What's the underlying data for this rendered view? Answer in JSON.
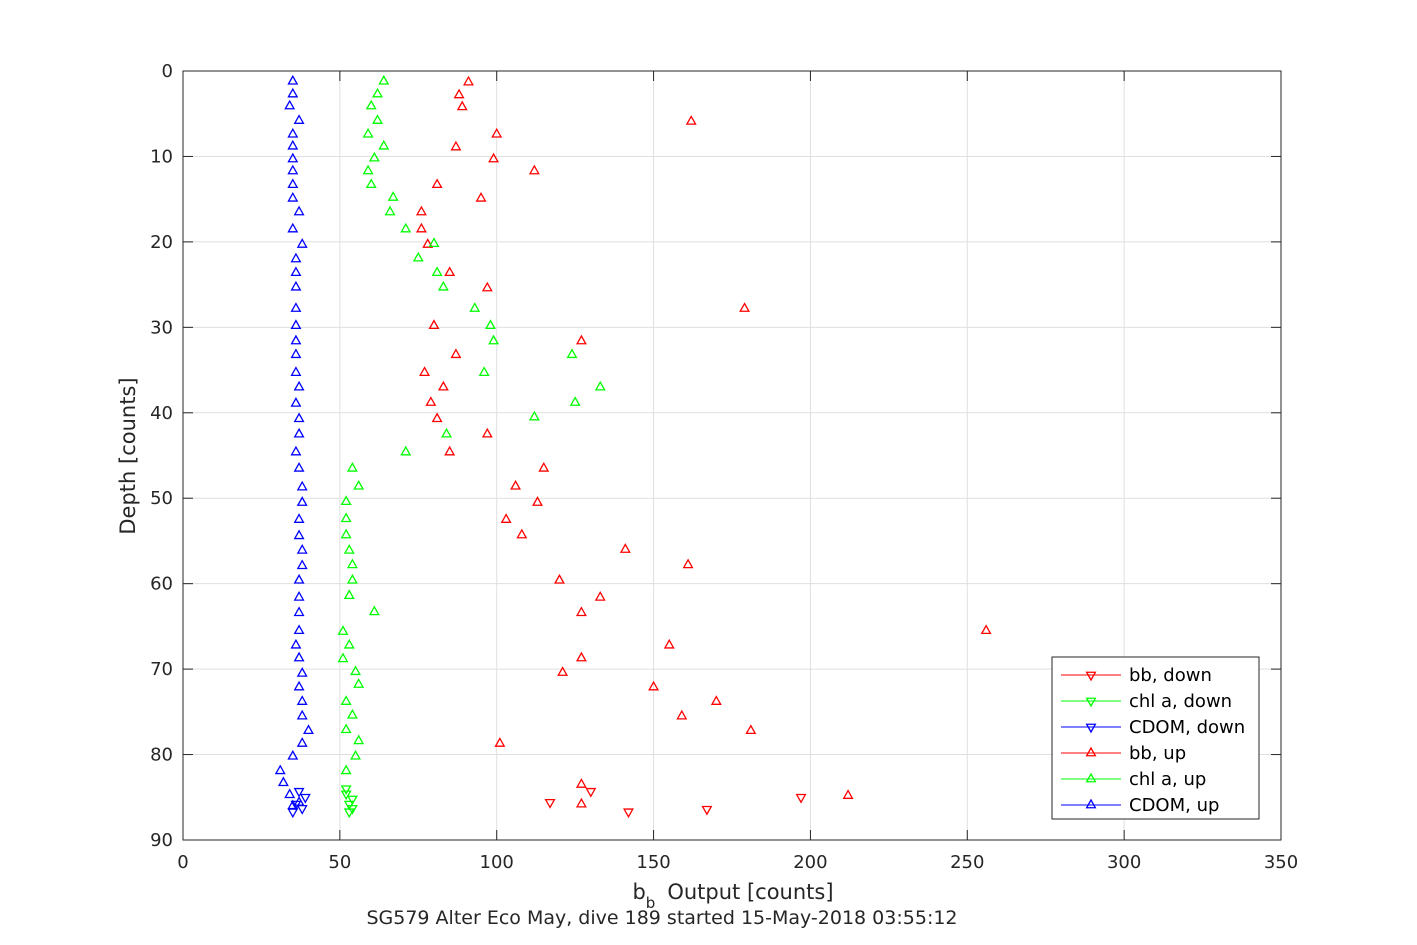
{
  "chart_data": {
    "type": "scatter",
    "xlabel_main": "Output [counts]",
    "xlabel_sym": "b",
    "xlabel_sub": "b",
    "ylabel": "Depth [counts]",
    "caption": "SG579 Alter Eco May, dive 189 started 15-May-2018 03:55:12",
    "xlim": [
      0,
      350
    ],
    "ylim": [
      0,
      90
    ],
    "y_reversed": true,
    "xticks": [
      0,
      50,
      100,
      150,
      200,
      250,
      300,
      350
    ],
    "yticks": [
      0,
      10,
      20,
      30,
      40,
      50,
      60,
      70,
      80,
      90
    ],
    "grid": true,
    "legend_position": "bottom-right",
    "series": [
      {
        "name": "bb, down",
        "color": "#ff0000",
        "marker": "triangle-down",
        "points": [
          [
            197,
            85
          ],
          [
            167,
            86.4
          ],
          [
            142,
            86.7
          ],
          [
            117,
            85.6
          ],
          [
            130,
            84.3
          ]
        ]
      },
      {
        "name": "chl a, down",
        "color": "#00ff00",
        "marker": "triangle-down",
        "points": [
          [
            52,
            84
          ],
          [
            52,
            84.6
          ],
          [
            54,
            85.2
          ],
          [
            53,
            85.8
          ],
          [
            54,
            86.3
          ],
          [
            53,
            86.7
          ]
        ]
      },
      {
        "name": "CDOM, down",
        "color": "#0000ff",
        "marker": "triangle-down",
        "points": [
          [
            37,
            84.3
          ],
          [
            39,
            85
          ],
          [
            36,
            85.8
          ],
          [
            38,
            86.3
          ],
          [
            35,
            86.7
          ]
        ]
      },
      {
        "name": "bb, up",
        "color": "#ff0000",
        "marker": "triangle-up",
        "points": [
          [
            212,
            84.8
          ],
          [
            127,
            85.8
          ],
          [
            127,
            83.5
          ],
          [
            101,
            78.7
          ],
          [
            181,
            77.2
          ],
          [
            159,
            75.5
          ],
          [
            170,
            73.8
          ],
          [
            150,
            72.1
          ],
          [
            121,
            70.4
          ],
          [
            127,
            68.7
          ],
          [
            155,
            67.2
          ],
          [
            256,
            65.5
          ],
          [
            127,
            63.4
          ],
          [
            133,
            61.6
          ],
          [
            120,
            59.6
          ],
          [
            161,
            57.8
          ],
          [
            141,
            56
          ],
          [
            108,
            54.3
          ],
          [
            103,
            52.5
          ],
          [
            113,
            50.5
          ],
          [
            106,
            48.6
          ],
          [
            115,
            46.5
          ],
          [
            85,
            44.6
          ],
          [
            97,
            42.5
          ],
          [
            81,
            40.7
          ],
          [
            79,
            38.8
          ],
          [
            83,
            37
          ],
          [
            77,
            35.3
          ],
          [
            87,
            33.2
          ],
          [
            127,
            31.6
          ],
          [
            80,
            29.8
          ],
          [
            179,
            27.8
          ],
          [
            97,
            25.4
          ],
          [
            85,
            23.6
          ],
          [
            78,
            20.3
          ],
          [
            76,
            18.5
          ],
          [
            76,
            16.5
          ],
          [
            95,
            14.9
          ],
          [
            81,
            13.3
          ],
          [
            112,
            11.7
          ],
          [
            99,
            10.3
          ],
          [
            87,
            8.9
          ],
          [
            100,
            7.4
          ],
          [
            162,
            5.9
          ],
          [
            89,
            4.2
          ],
          [
            88,
            2.8
          ],
          [
            91,
            1.3
          ]
        ]
      },
      {
        "name": "chl a, up",
        "color": "#00ff00",
        "marker": "triangle-up",
        "points": [
          [
            52,
            81.9
          ],
          [
            55,
            80.2
          ],
          [
            56,
            78.4
          ],
          [
            52,
            77.1
          ],
          [
            54,
            75.4
          ],
          [
            52,
            73.8
          ],
          [
            56,
            71.8
          ],
          [
            55,
            70.3
          ],
          [
            51,
            68.8
          ],
          [
            53,
            67.2
          ],
          [
            51,
            65.6
          ],
          [
            61,
            63.3
          ],
          [
            53,
            61.4
          ],
          [
            54,
            59.6
          ],
          [
            54,
            57.8
          ],
          [
            53,
            56.1
          ],
          [
            52,
            54.3
          ],
          [
            52,
            52.4
          ],
          [
            52,
            50.4
          ],
          [
            56,
            48.6
          ],
          [
            54,
            46.5
          ],
          [
            71,
            44.6
          ],
          [
            84,
            42.5
          ],
          [
            112,
            40.5
          ],
          [
            125,
            38.8
          ],
          [
            133,
            37
          ],
          [
            96,
            35.3
          ],
          [
            124,
            33.2
          ],
          [
            99,
            31.6
          ],
          [
            98,
            29.8
          ],
          [
            93,
            27.8
          ],
          [
            83,
            25.3
          ],
          [
            81,
            23.6
          ],
          [
            75,
            21.9
          ],
          [
            80,
            20.2
          ],
          [
            71,
            18.5
          ],
          [
            66,
            16.5
          ],
          [
            67,
            14.8
          ],
          [
            60,
            13.3
          ],
          [
            59,
            11.7
          ],
          [
            61,
            10.2
          ],
          [
            64,
            8.8
          ],
          [
            59,
            7.4
          ],
          [
            62,
            5.8
          ],
          [
            60,
            4.1
          ],
          [
            62,
            2.7
          ],
          [
            64,
            1.2
          ]
        ]
      },
      {
        "name": "CDOM, up",
        "color": "#0000ff",
        "marker": "triangle-up",
        "points": [
          [
            35,
            86
          ],
          [
            37,
            85.6
          ],
          [
            34,
            84.7
          ],
          [
            32,
            83.3
          ],
          [
            31,
            81.9
          ],
          [
            35,
            80.2
          ],
          [
            38,
            78.7
          ],
          [
            40,
            77.2
          ],
          [
            38,
            75.5
          ],
          [
            38,
            73.8
          ],
          [
            37,
            72.1
          ],
          [
            38,
            70.5
          ],
          [
            37,
            68.7
          ],
          [
            36,
            67.2
          ],
          [
            37,
            65.5
          ],
          [
            37,
            63.4
          ],
          [
            37,
            61.6
          ],
          [
            37,
            59.6
          ],
          [
            38,
            57.9
          ],
          [
            38,
            56.1
          ],
          [
            37,
            54.4
          ],
          [
            37,
            52.5
          ],
          [
            38,
            50.5
          ],
          [
            38,
            48.7
          ],
          [
            37,
            46.5
          ],
          [
            36,
            44.6
          ],
          [
            37,
            42.5
          ],
          [
            37,
            40.7
          ],
          [
            36,
            38.9
          ],
          [
            37,
            37
          ],
          [
            36,
            35.3
          ],
          [
            36,
            33.2
          ],
          [
            36,
            31.6
          ],
          [
            36,
            29.8
          ],
          [
            36,
            27.8
          ],
          [
            36,
            25.3
          ],
          [
            36,
            23.6
          ],
          [
            36,
            22
          ],
          [
            38,
            20.3
          ],
          [
            35,
            18.5
          ],
          [
            37,
            16.5
          ],
          [
            35,
            14.9
          ],
          [
            35,
            13.3
          ],
          [
            35,
            11.7
          ],
          [
            35,
            10.3
          ],
          [
            35,
            8.8
          ],
          [
            35,
            7.4
          ],
          [
            37,
            5.8
          ],
          [
            34,
            4.1
          ],
          [
            35,
            2.7
          ],
          [
            35,
            1.2
          ]
        ]
      }
    ]
  }
}
